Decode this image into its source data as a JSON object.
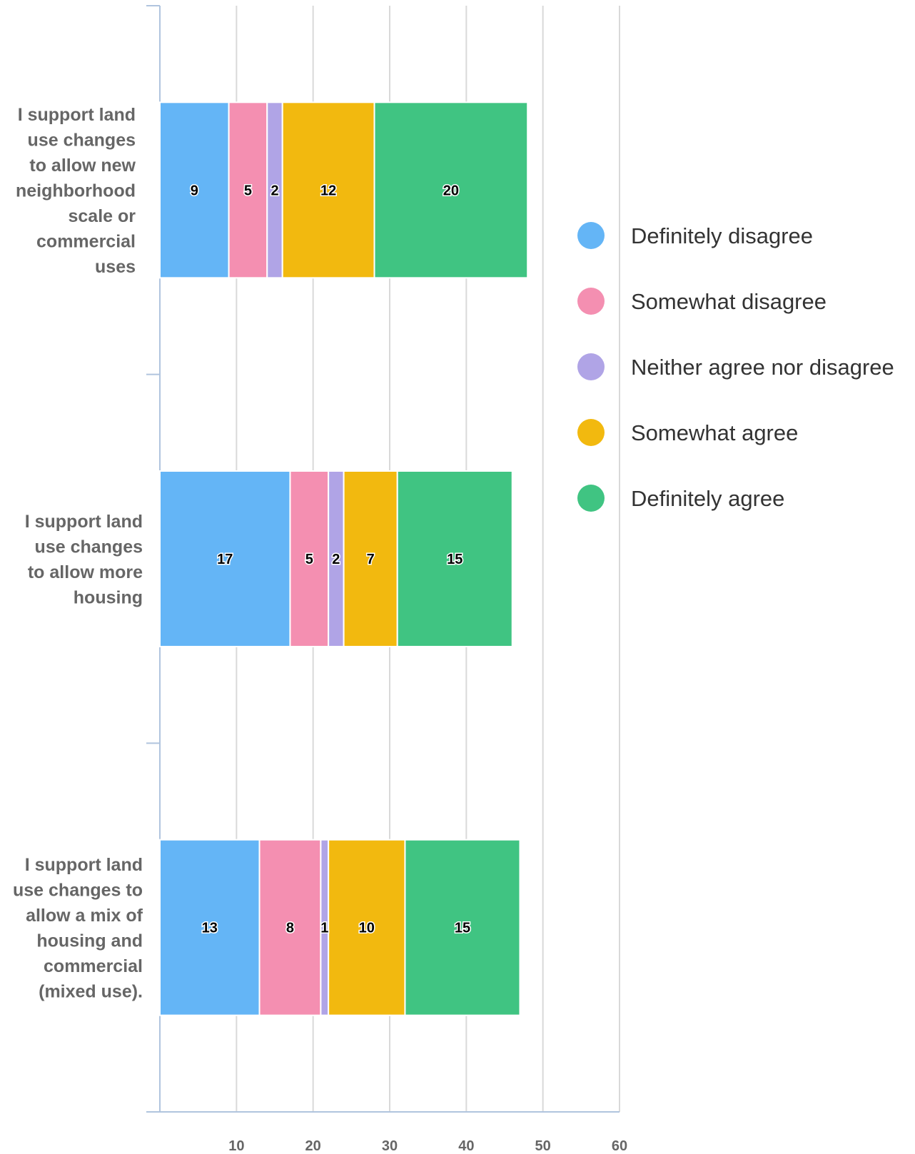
{
  "chart_data": {
    "type": "bar",
    "orientation": "horizontal",
    "stacked": true,
    "categories": [
      "I support land use changes to allow new neighborhood scale or commercial uses",
      "I support land use changes to allow more housing",
      "I support land use changes to allow a mix of housing and commercial (mixed use)."
    ],
    "category_lines": [
      [
        "I support land",
        "use changes",
        "to allow new",
        "neighborhood",
        "scale or",
        "commercial",
        "uses"
      ],
      [
        "I support land",
        "use changes",
        "to allow more",
        "housing"
      ],
      [
        "I support land",
        "use changes to",
        "allow a mix of",
        "housing and",
        "commercial",
        "(mixed use)."
      ]
    ],
    "series": [
      {
        "name": "Definitely disagree",
        "color": "#64b5f6",
        "values": [
          9,
          17,
          13
        ]
      },
      {
        "name": "Somewhat disagree",
        "color": "#f48fb1",
        "values": [
          5,
          5,
          8
        ]
      },
      {
        "name": "Neither agree nor disagree",
        "color": "#b0a4e6",
        "values": [
          2,
          2,
          1
        ]
      },
      {
        "name": "Somewhat agree",
        "color": "#f2b90f",
        "values": [
          12,
          7,
          10
        ]
      },
      {
        "name": "Definitely agree",
        "color": "#40c482",
        "values": [
          20,
          15,
          15
        ]
      }
    ],
    "xlim": [
      0,
      60
    ],
    "xticks": [
      10,
      20,
      30,
      40,
      50,
      60
    ],
    "grid": true,
    "legend_position": "right",
    "title": "",
    "xlabel": "",
    "ylabel": ""
  }
}
